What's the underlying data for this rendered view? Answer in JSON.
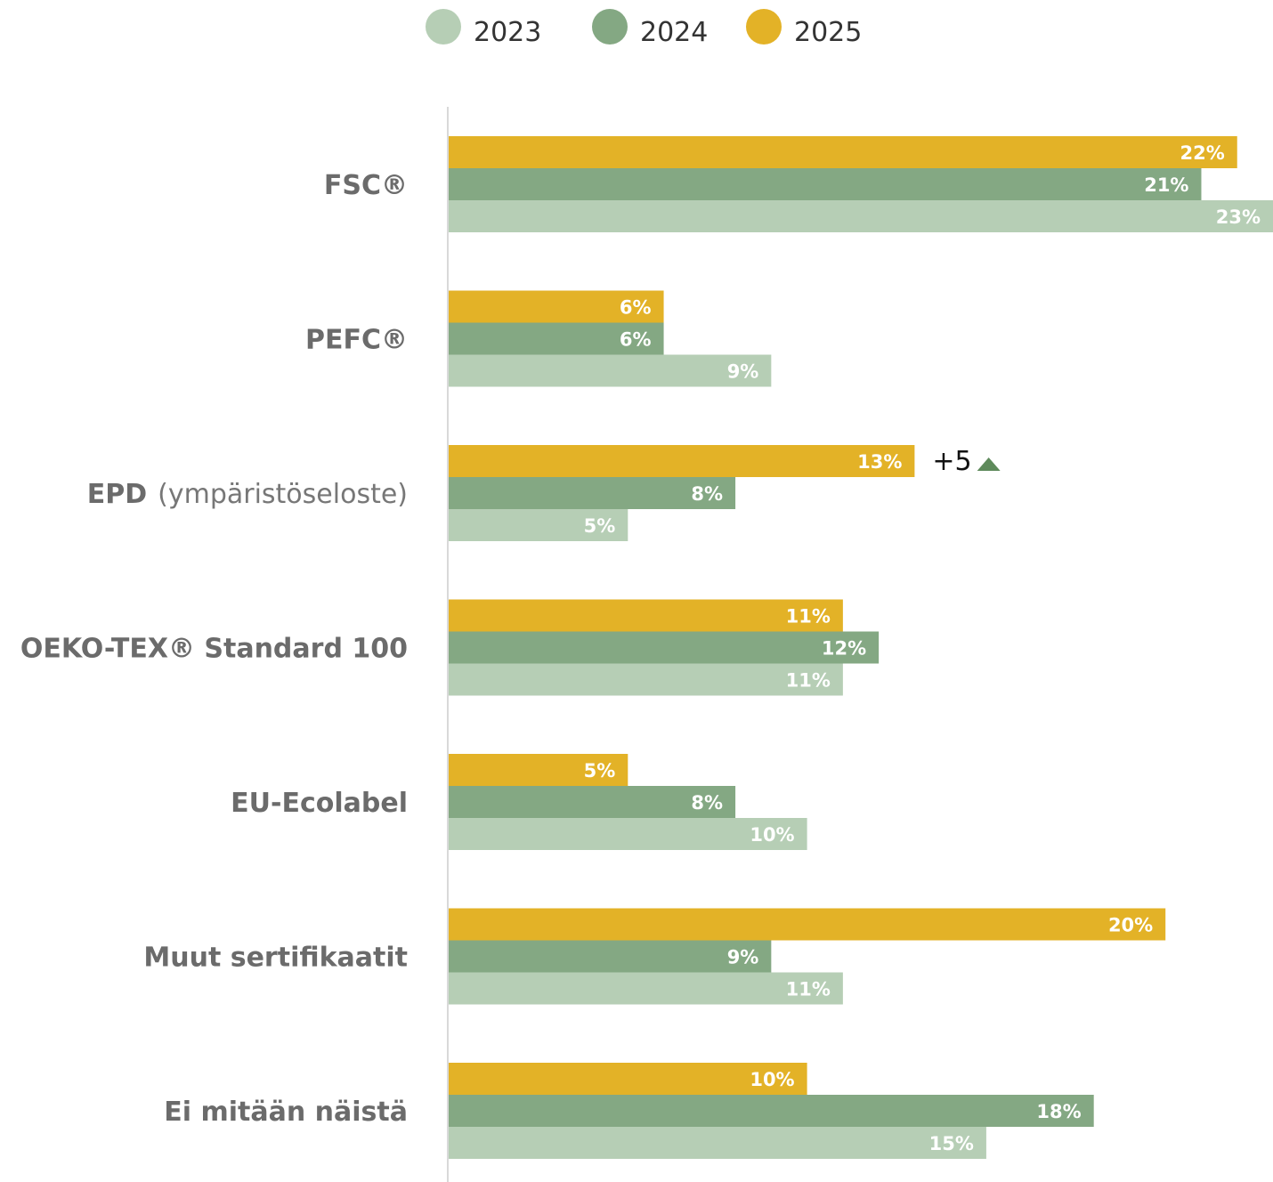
{
  "chart_data": {
    "type": "bar",
    "orientation": "horizontal",
    "unit": "%",
    "xlim": [
      0,
      23
    ],
    "grid": false,
    "legend_position": "top-center",
    "categories": [
      {
        "name": "FSC®",
        "note": ""
      },
      {
        "name": "PEFC®",
        "note": ""
      },
      {
        "name": "EPD",
        "note": "(ympäristöseloste)"
      },
      {
        "name": "OEKO-TEX® Standard 100",
        "note": ""
      },
      {
        "name": "EU-Ecolabel",
        "note": ""
      },
      {
        "name": "Muut sertifikaatit",
        "note": ""
      },
      {
        "name": "Ei mitään näistä",
        "note": ""
      }
    ],
    "series": [
      {
        "name": "2025",
        "color": "#e3b227",
        "values": [
          22,
          6,
          13,
          11,
          5,
          20,
          10
        ]
      },
      {
        "name": "2024",
        "color": "#84a883",
        "values": [
          21,
          6,
          8,
          12,
          8,
          9,
          18
        ]
      },
      {
        "name": "2023",
        "color": "#b6ceb5",
        "values": [
          23,
          9,
          5,
          11,
          10,
          11,
          15
        ]
      }
    ],
    "legend_order": [
      "2023",
      "2024",
      "2025"
    ],
    "annotations": [
      {
        "category_index": 2,
        "series": "2025",
        "text": "+5",
        "icon": "triangle-up-icon",
        "color": "#5e8a5b"
      }
    ]
  }
}
